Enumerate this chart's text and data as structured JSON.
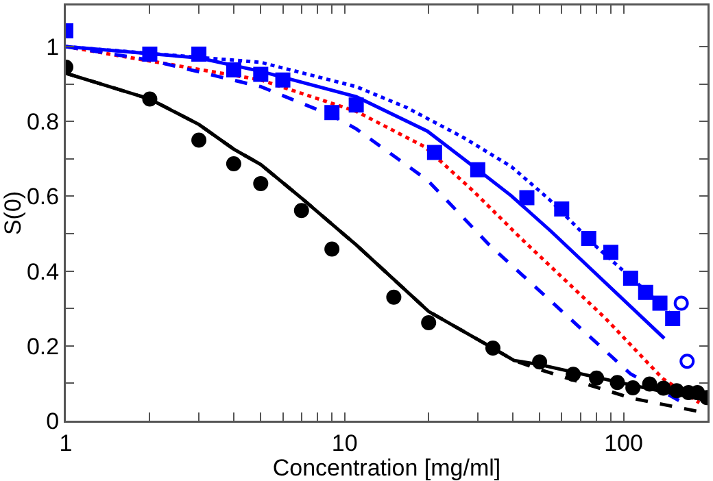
{
  "chart_data": {
    "type": "line",
    "xlabel": "Concentration [mg/ml]",
    "ylabel": "S(0)",
    "log": "x",
    "grid": false,
    "xlim": [
      1,
      200
    ],
    "ylim": [
      0,
      1.11
    ],
    "xticks": [
      1,
      {
        "value": 2,
        "label": null
      },
      {
        "value": 3,
        "label": null
      },
      {
        "value": 4,
        "label": null
      },
      {
        "value": 5,
        "label": null
      },
      {
        "value": 6,
        "label": null
      },
      {
        "value": 7,
        "label": null
      },
      {
        "value": 8,
        "label": null
      },
      {
        "value": 9,
        "label": null
      },
      10,
      {
        "value": 20,
        "label": null
      },
      {
        "value": 30,
        "label": null
      },
      {
        "value": 40,
        "label": null
      },
      {
        "value": 50,
        "label": null
      },
      {
        "value": 60,
        "label": null
      },
      {
        "value": 70,
        "label": null
      },
      {
        "value": 80,
        "label": null
      },
      {
        "value": 90,
        "label": null
      },
      100
    ],
    "yticks": [
      0,
      {
        "value": 0.1,
        "label": null
      },
      0.2,
      {
        "value": 0.3,
        "label": null
      },
      0.4,
      {
        "value": 0.5,
        "label": null
      },
      0.6,
      {
        "value": 0.7,
        "label": null
      },
      0.8,
      {
        "value": 0.9,
        "label": null
      },
      1
    ],
    "series": [
      {
        "line_style": "dotted",
        "marker": "none",
        "color": "#ff0000",
        "x": [
          1,
          5,
          11,
          19.4,
          29,
          42.8,
          86,
          138,
          187
        ],
        "values": [
          1.0,
          0.911,
          0.827,
          0.732,
          0.613,
          0.488,
          0.274,
          0.113,
          0.048
        ]
      },
      {
        "line_style": "dashed",
        "marker": "none",
        "color": "#0000ff",
        "x": [
          1,
          2,
          5,
          9,
          11,
          19.8,
          33,
          106,
          158
        ],
        "values": [
          1.0,
          0.964,
          0.893,
          0.816,
          0.78,
          0.643,
          0.47,
          0.125,
          0.054
        ]
      },
      {
        "line_style": "dotted",
        "marker": "none",
        "color": "#0000ff",
        "x": [
          1,
          5,
          11,
          16.7,
          26.8,
          39.6,
          53.9,
          78.6,
          123,
          150
        ],
        "values": [
          1.0,
          0.958,
          0.893,
          0.837,
          0.756,
          0.679,
          0.593,
          0.47,
          0.34,
          0.28
        ]
      },
      {
        "line_style": "solid",
        "marker": "none",
        "color": "#0000ff",
        "x": [
          1,
          3,
          5,
          11,
          19.8,
          30,
          39.6,
          55,
          140
        ],
        "values": [
          1.0,
          0.97,
          0.934,
          0.866,
          0.774,
          0.671,
          0.601,
          0.506,
          0.22
        ]
      },
      {
        "line_style": "dashed",
        "marker": "none",
        "color": "#000000",
        "x": [
          1,
          2,
          3,
          4,
          5,
          7,
          11,
          20,
          34,
          40.5,
          50,
          107,
          200
        ],
        "values": [
          0.929,
          0.86,
          0.792,
          0.726,
          0.685,
          0.595,
          0.47,
          0.292,
          0.194,
          0.161,
          0.137,
          0.06,
          0.02
        ]
      },
      {
        "line_style": "solid",
        "marker": "none",
        "color": "#000000",
        "x": [
          1,
          2,
          3,
          4,
          5,
          7,
          11,
          20,
          34,
          40.5,
          50,
          107,
          200
        ],
        "values": [
          0.929,
          0.86,
          0.792,
          0.726,
          0.685,
          0.595,
          0.47,
          0.292,
          0.194,
          0.161,
          0.15,
          0.095,
          0.054
        ]
      },
      {
        "type": "scatter",
        "marker": "circle",
        "color": "#000000",
        "x": [
          1,
          2,
          3,
          4,
          5,
          7,
          9,
          15,
          20,
          34,
          50,
          66,
          80,
          95,
          108,
          124,
          139,
          155,
          171,
          184,
          199
        ],
        "values": [
          0.945,
          0.86,
          0.75,
          0.687,
          0.634,
          0.562,
          0.459,
          0.33,
          0.262,
          0.194,
          0.157,
          0.124,
          0.114,
          0.102,
          0.088,
          0.098,
          0.087,
          0.08,
          0.075,
          0.075,
          0.062
        ]
      },
      {
        "type": "scatter",
        "marker": "square",
        "color": "#0000ff",
        "x": [
          1,
          2,
          3,
          4,
          5,
          6,
          9,
          11,
          21,
          30,
          45,
          60,
          75,
          90,
          106,
          120,
          135,
          150
        ],
        "values": [
          1.042,
          0.98,
          0.98,
          0.938,
          0.926,
          0.911,
          0.824,
          0.844,
          0.717,
          0.671,
          0.596,
          0.566,
          0.487,
          0.45,
          0.381,
          0.343,
          0.314,
          0.273
        ]
      },
      {
        "type": "scatter",
        "marker": "circle-open",
        "color": "#0000ff",
        "x": [
          161,
          169
        ],
        "values": [
          0.314,
          0.159
        ]
      }
    ]
  }
}
